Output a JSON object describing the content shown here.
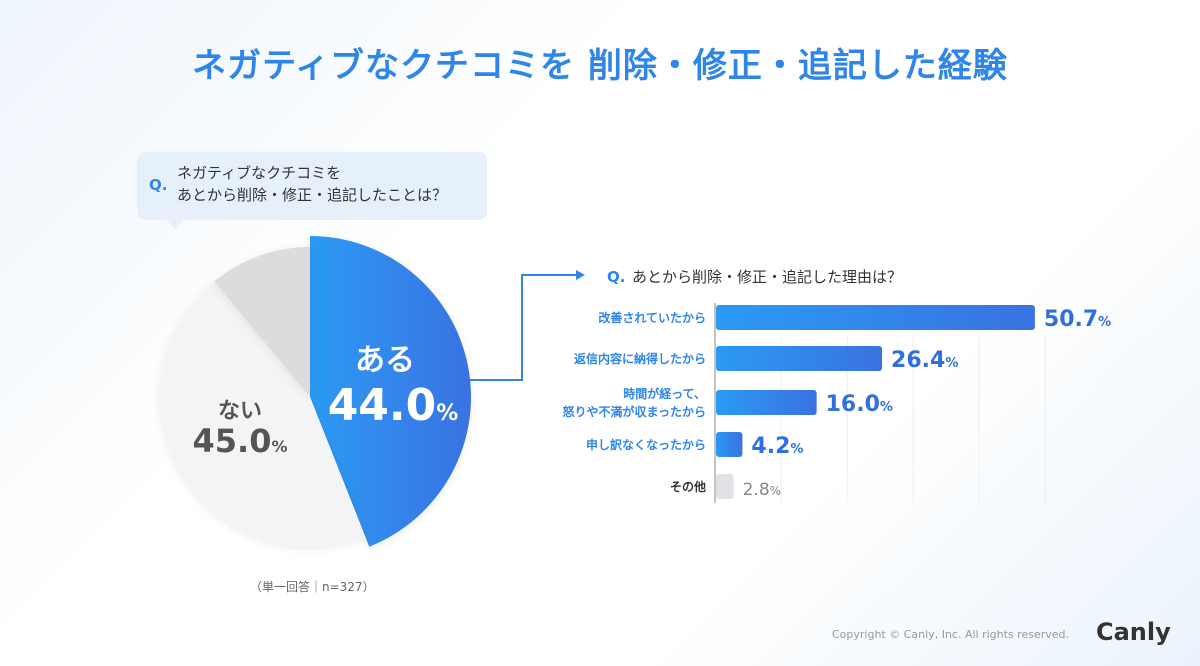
{
  "title": "ネガティブなクチコミを 削除・修正・追記した経験",
  "pie_question": {
    "prefix": "Q.",
    "line1": "ネガティブなクチコミを",
    "line2": "あとから削除・修正・追記したことは？"
  },
  "note": "（単一回答｜n=327）",
  "copyright": "Copyright © Canly, Inc. All rights reserved.",
  "logo": "Canly",
  "colors": {
    "blue": "#2f86ea",
    "blue_dark": "#3a6fe0",
    "light": "#f4f4f7",
    "gray": "#dcdcde",
    "other_bar": "#e2e2e6"
  },
  "chart_data": [
    {
      "type": "pie",
      "slices": [
        {
          "label": "ある",
          "value": 44.0,
          "display": "44.0",
          "color": "#2f86ea"
        },
        {
          "label": "ない",
          "value": 45.0,
          "display": "45.0",
          "color": "#f4f4f7"
        },
        {
          "label": "",
          "value": 11.0,
          "color": "#dcdcde"
        }
      ],
      "unit": "%"
    },
    {
      "type": "bar",
      "orientation": "horizontal",
      "title_prefix": "Q.",
      "title": "あとから削除・修正・追記した理由は？",
      "categories": [
        [
          "改善されていたから"
        ],
        [
          "返信内容に納得したから"
        ],
        [
          "時間が経って、",
          "怒りや不満が収まったから"
        ],
        [
          "申し訳なくなったから"
        ],
        [
          "その他"
        ]
      ],
      "values": [
        50.7,
        26.4,
        16.0,
        4.2,
        2.8
      ],
      "unit": "%",
      "grid": true
    }
  ]
}
